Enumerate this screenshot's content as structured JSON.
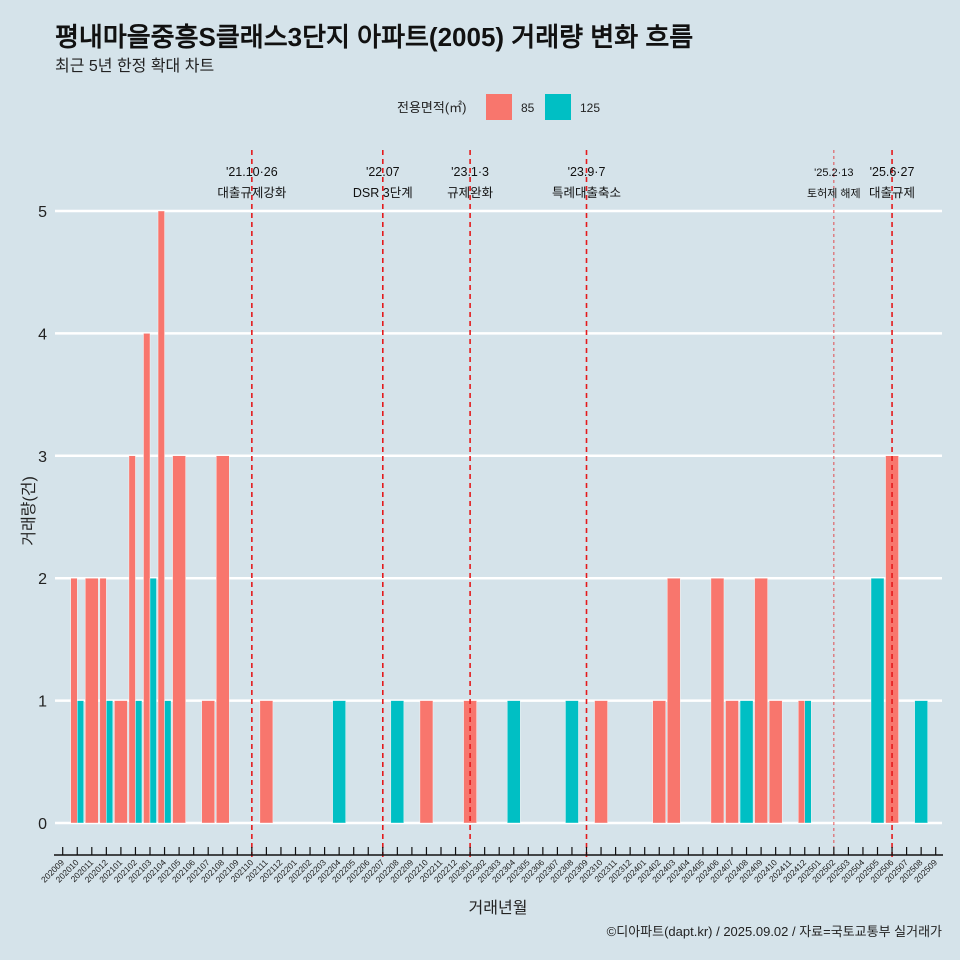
{
  "chart_data": {
    "type": "bar",
    "title": "평내마을중흥S클래스3단지 아파트(2005) 거래량 변화 흐름",
    "subtitle": "최근 5년 한정 확대 차트",
    "xlabel": "거래년월",
    "ylabel": "거래량(건)",
    "ylim": [
      0,
      5
    ],
    "yticks": [
      0,
      1,
      2,
      3,
      4,
      5
    ],
    "grid": true,
    "legend_position": "top",
    "legend_title": "전용면적(㎡)",
    "categories": [
      "202009",
      "202010",
      "202011",
      "202012",
      "202101",
      "202102",
      "202103",
      "202104",
      "202105",
      "202106",
      "202107",
      "202108",
      "202109",
      "202110",
      "202111",
      "202112",
      "202201",
      "202202",
      "202203",
      "202204",
      "202205",
      "202206",
      "202207",
      "202208",
      "202209",
      "202210",
      "202211",
      "202212",
      "202301",
      "202302",
      "202303",
      "202304",
      "202305",
      "202306",
      "202307",
      "202308",
      "202309",
      "202310",
      "202311",
      "202312",
      "202401",
      "202402",
      "202403",
      "202404",
      "202405",
      "202406",
      "202407",
      "202408",
      "202409",
      "202410",
      "202411",
      "202412",
      "202501",
      "202502",
      "202503",
      "202504",
      "202505",
      "202506",
      "202507",
      "202508",
      "202509"
    ],
    "series": [
      {
        "name": "85",
        "color": "#F8766D",
        "values": [
          null,
          2,
          2,
          2,
          1,
          3,
          4,
          5,
          3,
          null,
          1,
          3,
          null,
          null,
          1,
          null,
          null,
          null,
          null,
          null,
          null,
          null,
          null,
          null,
          null,
          1,
          null,
          null,
          1,
          null,
          null,
          null,
          null,
          null,
          null,
          null,
          null,
          1,
          null,
          null,
          null,
          1,
          2,
          null,
          null,
          2,
          1,
          null,
          2,
          1,
          null,
          1,
          null,
          null,
          null,
          null,
          null,
          3,
          null,
          null,
          null
        ]
      },
      {
        "name": "125",
        "color": "#00BFC4",
        "values": [
          null,
          1,
          null,
          1,
          null,
          1,
          2,
          1,
          null,
          null,
          null,
          null,
          null,
          null,
          null,
          null,
          null,
          null,
          null,
          1,
          null,
          null,
          null,
          1,
          null,
          null,
          null,
          null,
          null,
          null,
          null,
          1,
          null,
          null,
          null,
          1,
          null,
          null,
          null,
          null,
          null,
          null,
          null,
          null,
          null,
          null,
          null,
          1,
          null,
          null,
          null,
          1,
          null,
          null,
          null,
          null,
          2,
          null,
          null,
          1,
          null
        ]
      }
    ],
    "events": [
      {
        "x": "202110",
        "date": "'21.10·26",
        "label": "대출규제강화",
        "style": "major"
      },
      {
        "x": "202207",
        "date": "'22.07",
        "label": "DSR 3단계",
        "style": "major"
      },
      {
        "x": "202301",
        "date": "'23.1·3",
        "label": "규제완화",
        "style": "major"
      },
      {
        "x": "202309",
        "date": "'23.9·7",
        "label": "특례대출축소",
        "style": "major"
      },
      {
        "x": "202502",
        "date": "'25.2·13",
        "label": "토허제 해제",
        "style": "minor"
      },
      {
        "x": "202506",
        "date": "'25.6·27",
        "label": "대출규제",
        "style": "major"
      }
    ],
    "event_line_color": "#E41A1C",
    "caption": "©디아파트(dapt.kr) / 2025.09.02 / 자료=국토교통부 실거래가"
  }
}
